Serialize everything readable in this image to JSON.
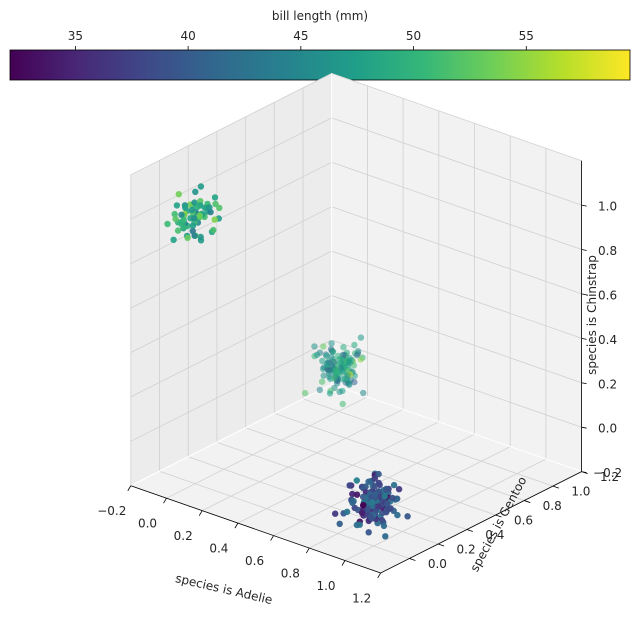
{
  "chart_data": {
    "type": "scatter3d",
    "title": "",
    "xlabel": "species is Adelie",
    "ylabel": "species is Gentoo",
    "zlabel": "species is Chinstrap",
    "xlim": [
      -0.2,
      1.2
    ],
    "ylim": [
      -0.2,
      1.2
    ],
    "zlim": [
      -0.2,
      1.2
    ],
    "x_ticks": [
      "−0.2",
      "0.0",
      "0.2",
      "0.4",
      "0.6",
      "0.8",
      "1.0",
      "1.2"
    ],
    "y_ticks": [
      "0.0",
      "0.2",
      "0.4",
      "0.6",
      "0.8",
      "1.0",
      "1.2"
    ],
    "z_ticks": [
      "−0.2",
      "0.0",
      "0.2",
      "0.4",
      "0.6",
      "0.8",
      "1.0"
    ],
    "grid": true,
    "colorbar": {
      "label": "bill length (mm)",
      "colormap": "viridis",
      "range": [
        32.1,
        59.6
      ],
      "ticks": [
        "35",
        "40",
        "45",
        "50",
        "55"
      ],
      "tick_values": [
        35,
        40,
        45,
        50,
        55
      ],
      "colors": [
        "#440154",
        "#482878",
        "#3e4a89",
        "#31688e",
        "#26828e",
        "#1f9e89",
        "#35b779",
        "#6ece58",
        "#b5de2b",
        "#fde725"
      ]
    },
    "clusters": [
      {
        "x": 1,
        "y": 0,
        "z": 0,
        "count": 152,
        "bill_length_mean": 38.8,
        "bill_length_sd": 2.7
      },
      {
        "x": 0,
        "y": 1,
        "z": 0,
        "count": 124,
        "bill_length_mean": 47.5,
        "bill_length_sd": 3.1
      },
      {
        "x": 0,
        "y": 0,
        "z": 1,
        "count": 68,
        "bill_length_mean": 48.8,
        "bill_length_sd": 3.3
      }
    ]
  }
}
